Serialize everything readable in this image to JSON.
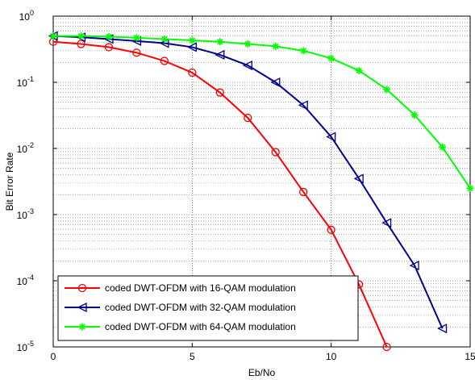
{
  "chart_data": {
    "type": "line",
    "xlabel": "Eb/No",
    "ylabel": "Bit Error Rate",
    "xlim": [
      0,
      15
    ],
    "ylim": [
      1e-05,
      1
    ],
    "yscale": "log",
    "grid": true,
    "legend_position": "bottom-left",
    "x_ticks": [
      "0",
      "5",
      "10",
      "15"
    ],
    "y_ticks": [
      {
        "base": "10",
        "exp": "0"
      },
      {
        "base": "10",
        "exp": "-1"
      },
      {
        "base": "10",
        "exp": "-2"
      },
      {
        "base": "10",
        "exp": "-3"
      },
      {
        "base": "10",
        "exp": "-4"
      },
      {
        "base": "10",
        "exp": "-5"
      }
    ],
    "series": [
      {
        "name": "coded DWT-OFDM with 16-QAM modulation",
        "color": "#ff0000",
        "marker": "circle",
        "x": [
          0,
          1,
          2,
          3,
          4,
          5,
          6,
          7,
          8,
          9,
          10,
          11,
          12
        ],
        "y": [
          0.41,
          0.38,
          0.34,
          0.28,
          0.21,
          0.14,
          0.07,
          0.029,
          0.0088,
          0.0022,
          0.00059,
          8.8e-05,
          1e-05
        ]
      },
      {
        "name": "coded DWT-OFDM with 32-QAM modulation",
        "color": "#00008b",
        "marker": "triangle-left",
        "x": [
          0,
          1,
          2,
          3,
          4,
          5,
          6,
          7,
          8,
          9,
          10,
          11,
          12,
          13,
          14
        ],
        "y": [
          0.5,
          0.48,
          0.45,
          0.42,
          0.39,
          0.34,
          0.26,
          0.18,
          0.1,
          0.045,
          0.015,
          0.0035,
          0.00075,
          0.00017,
          1.9e-05
        ]
      },
      {
        "name": "coded DWT-OFDM with 64-QAM modulation",
        "color": "#00ff00",
        "marker": "star",
        "x": [
          0,
          1,
          2,
          3,
          4,
          5,
          6,
          7,
          8,
          9,
          10,
          11,
          12,
          13,
          14,
          15
        ],
        "y": [
          0.5,
          0.5,
          0.49,
          0.47,
          0.45,
          0.43,
          0.41,
          0.38,
          0.35,
          0.3,
          0.23,
          0.15,
          0.078,
          0.032,
          0.0105,
          0.0025
        ]
      }
    ]
  }
}
